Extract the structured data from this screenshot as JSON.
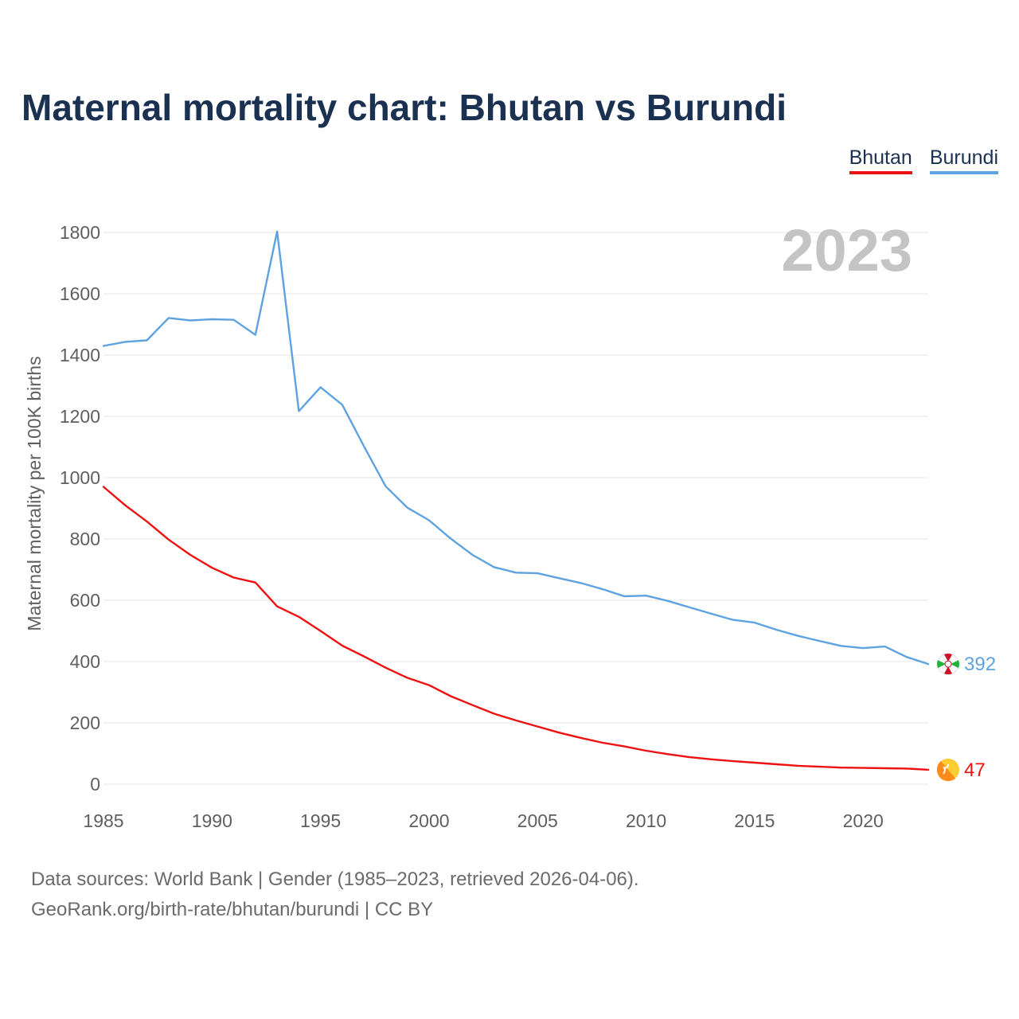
{
  "chart_data": {
    "type": "line",
    "title": "Maternal mortality chart: Bhutan vs Burundi",
    "ylabel": "Maternal mortality per 100K births",
    "xlabel": "",
    "year_display": "2023",
    "xlim": [
      1985,
      2023
    ],
    "ylim": [
      0,
      1800
    ],
    "x_ticks": [
      1985,
      1990,
      1995,
      2000,
      2005,
      2010,
      2015,
      2020
    ],
    "y_ticks": [
      0,
      200,
      400,
      600,
      800,
      1000,
      1200,
      1400,
      1600,
      1800
    ],
    "grid": true,
    "x": [
      1985,
      1986,
      1987,
      1988,
      1989,
      1990,
      1991,
      1992,
      1993,
      1994,
      1995,
      1996,
      1997,
      1998,
      1999,
      2000,
      2001,
      2002,
      2003,
      2004,
      2005,
      2006,
      2007,
      2008,
      2009,
      2010,
      2011,
      2012,
      2013,
      2014,
      2015,
      2016,
      2017,
      2018,
      2019,
      2020,
      2021,
      2022,
      2023
    ],
    "series": [
      {
        "name": "Bhutan",
        "color": "#ee1111",
        "end_label": "47",
        "flag_icon": "bhutan-flag-icon",
        "values": [
          970,
          910,
          857,
          798,
          748,
          706,
          674,
          658,
          580,
          546,
          500,
          452,
          417,
          380,
          347,
          323,
          287,
          258,
          230,
          208,
          188,
          168,
          151,
          135,
          123,
          109,
          98,
          88,
          81,
          75,
          70,
          65,
          60,
          57,
          54,
          53,
          52,
          51,
          47
        ]
      },
      {
        "name": "Burundi",
        "color": "#5ea3e0",
        "end_label": "392",
        "flag_icon": "burundi-flag-icon",
        "values": [
          1430,
          1443,
          1448,
          1521,
          1513,
          1517,
          1515,
          1466,
          1803,
          1217,
          1295,
          1238,
          1102,
          972,
          902,
          861,
          801,
          748,
          708,
          690,
          688,
          672,
          656,
          636,
          613,
          615,
          598,
          577,
          556,
          536,
          527,
          504,
          484,
          467,
          451,
          444,
          449,
          415,
          392
        ]
      }
    ]
  },
  "footer": {
    "line1": "Data sources: World Bank | Gender (1985–2023, retrieved 2026-04-06).",
    "line2": "GeoRank.org/birth-rate/bhutan/burundi | CC BY"
  }
}
